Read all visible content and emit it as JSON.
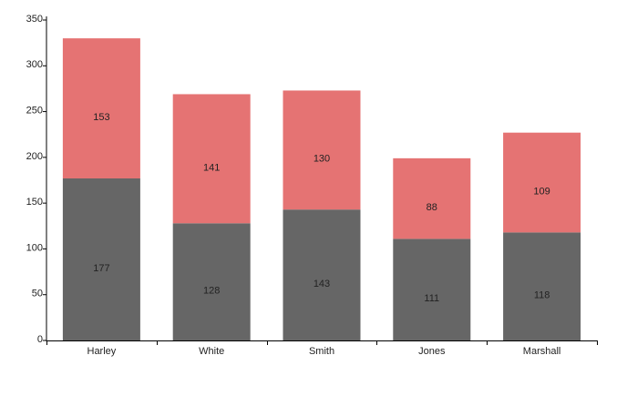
{
  "chart_data": {
    "type": "stacked_bar",
    "categories": [
      "Harley",
      "White",
      "Smith",
      "Jones",
      "Marshall"
    ],
    "series": [
      {
        "color": "#666666",
        "values": [
          177,
          128,
          143,
          111,
          118
        ]
      },
      {
        "color": "#e57373",
        "values": [
          153,
          141,
          130,
          88,
          109
        ]
      }
    ],
    "ylim": [
      0,
      350
    ],
    "yticks": [
      0,
      50,
      100,
      150,
      200,
      250,
      300,
      350
    ],
    "grid": false
  }
}
